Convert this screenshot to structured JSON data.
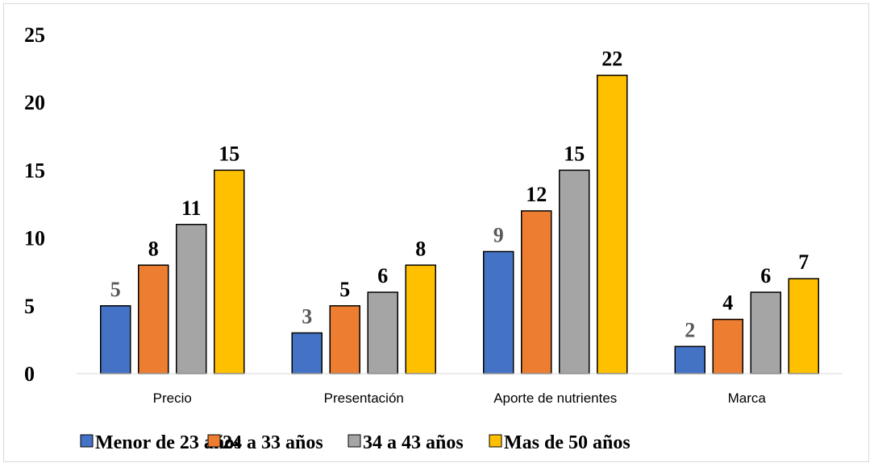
{
  "chart_data": {
    "type": "bar",
    "title": "",
    "xlabel": "",
    "ylabel": "",
    "categories": [
      "Precio",
      "Presentación",
      "Aporte de nutrientes",
      "Marca"
    ],
    "series": [
      {
        "name": "Menor de 23 años",
        "values": [
          5,
          3,
          9,
          2
        ],
        "color": "#4472c4",
        "label_color": "#595959"
      },
      {
        "name": "24 a 33 años",
        "values": [
          8,
          5,
          12,
          4
        ],
        "color": "#ed7d31",
        "label_color": "#000000"
      },
      {
        "name": "34 a 43 años",
        "values": [
          11,
          6,
          15,
          6
        ],
        "color": "#a5a5a5",
        "label_color": "#000000"
      },
      {
        "name": "Mas de 50 años",
        "values": [
          15,
          8,
          22,
          7
        ],
        "color": "#ffc000",
        "label_color": "#000000"
      }
    ],
    "ylim": [
      0,
      25
    ],
    "yticks": [
      0,
      5,
      10,
      15,
      20,
      25
    ],
    "grid": false,
    "legend_position": "bottom"
  }
}
